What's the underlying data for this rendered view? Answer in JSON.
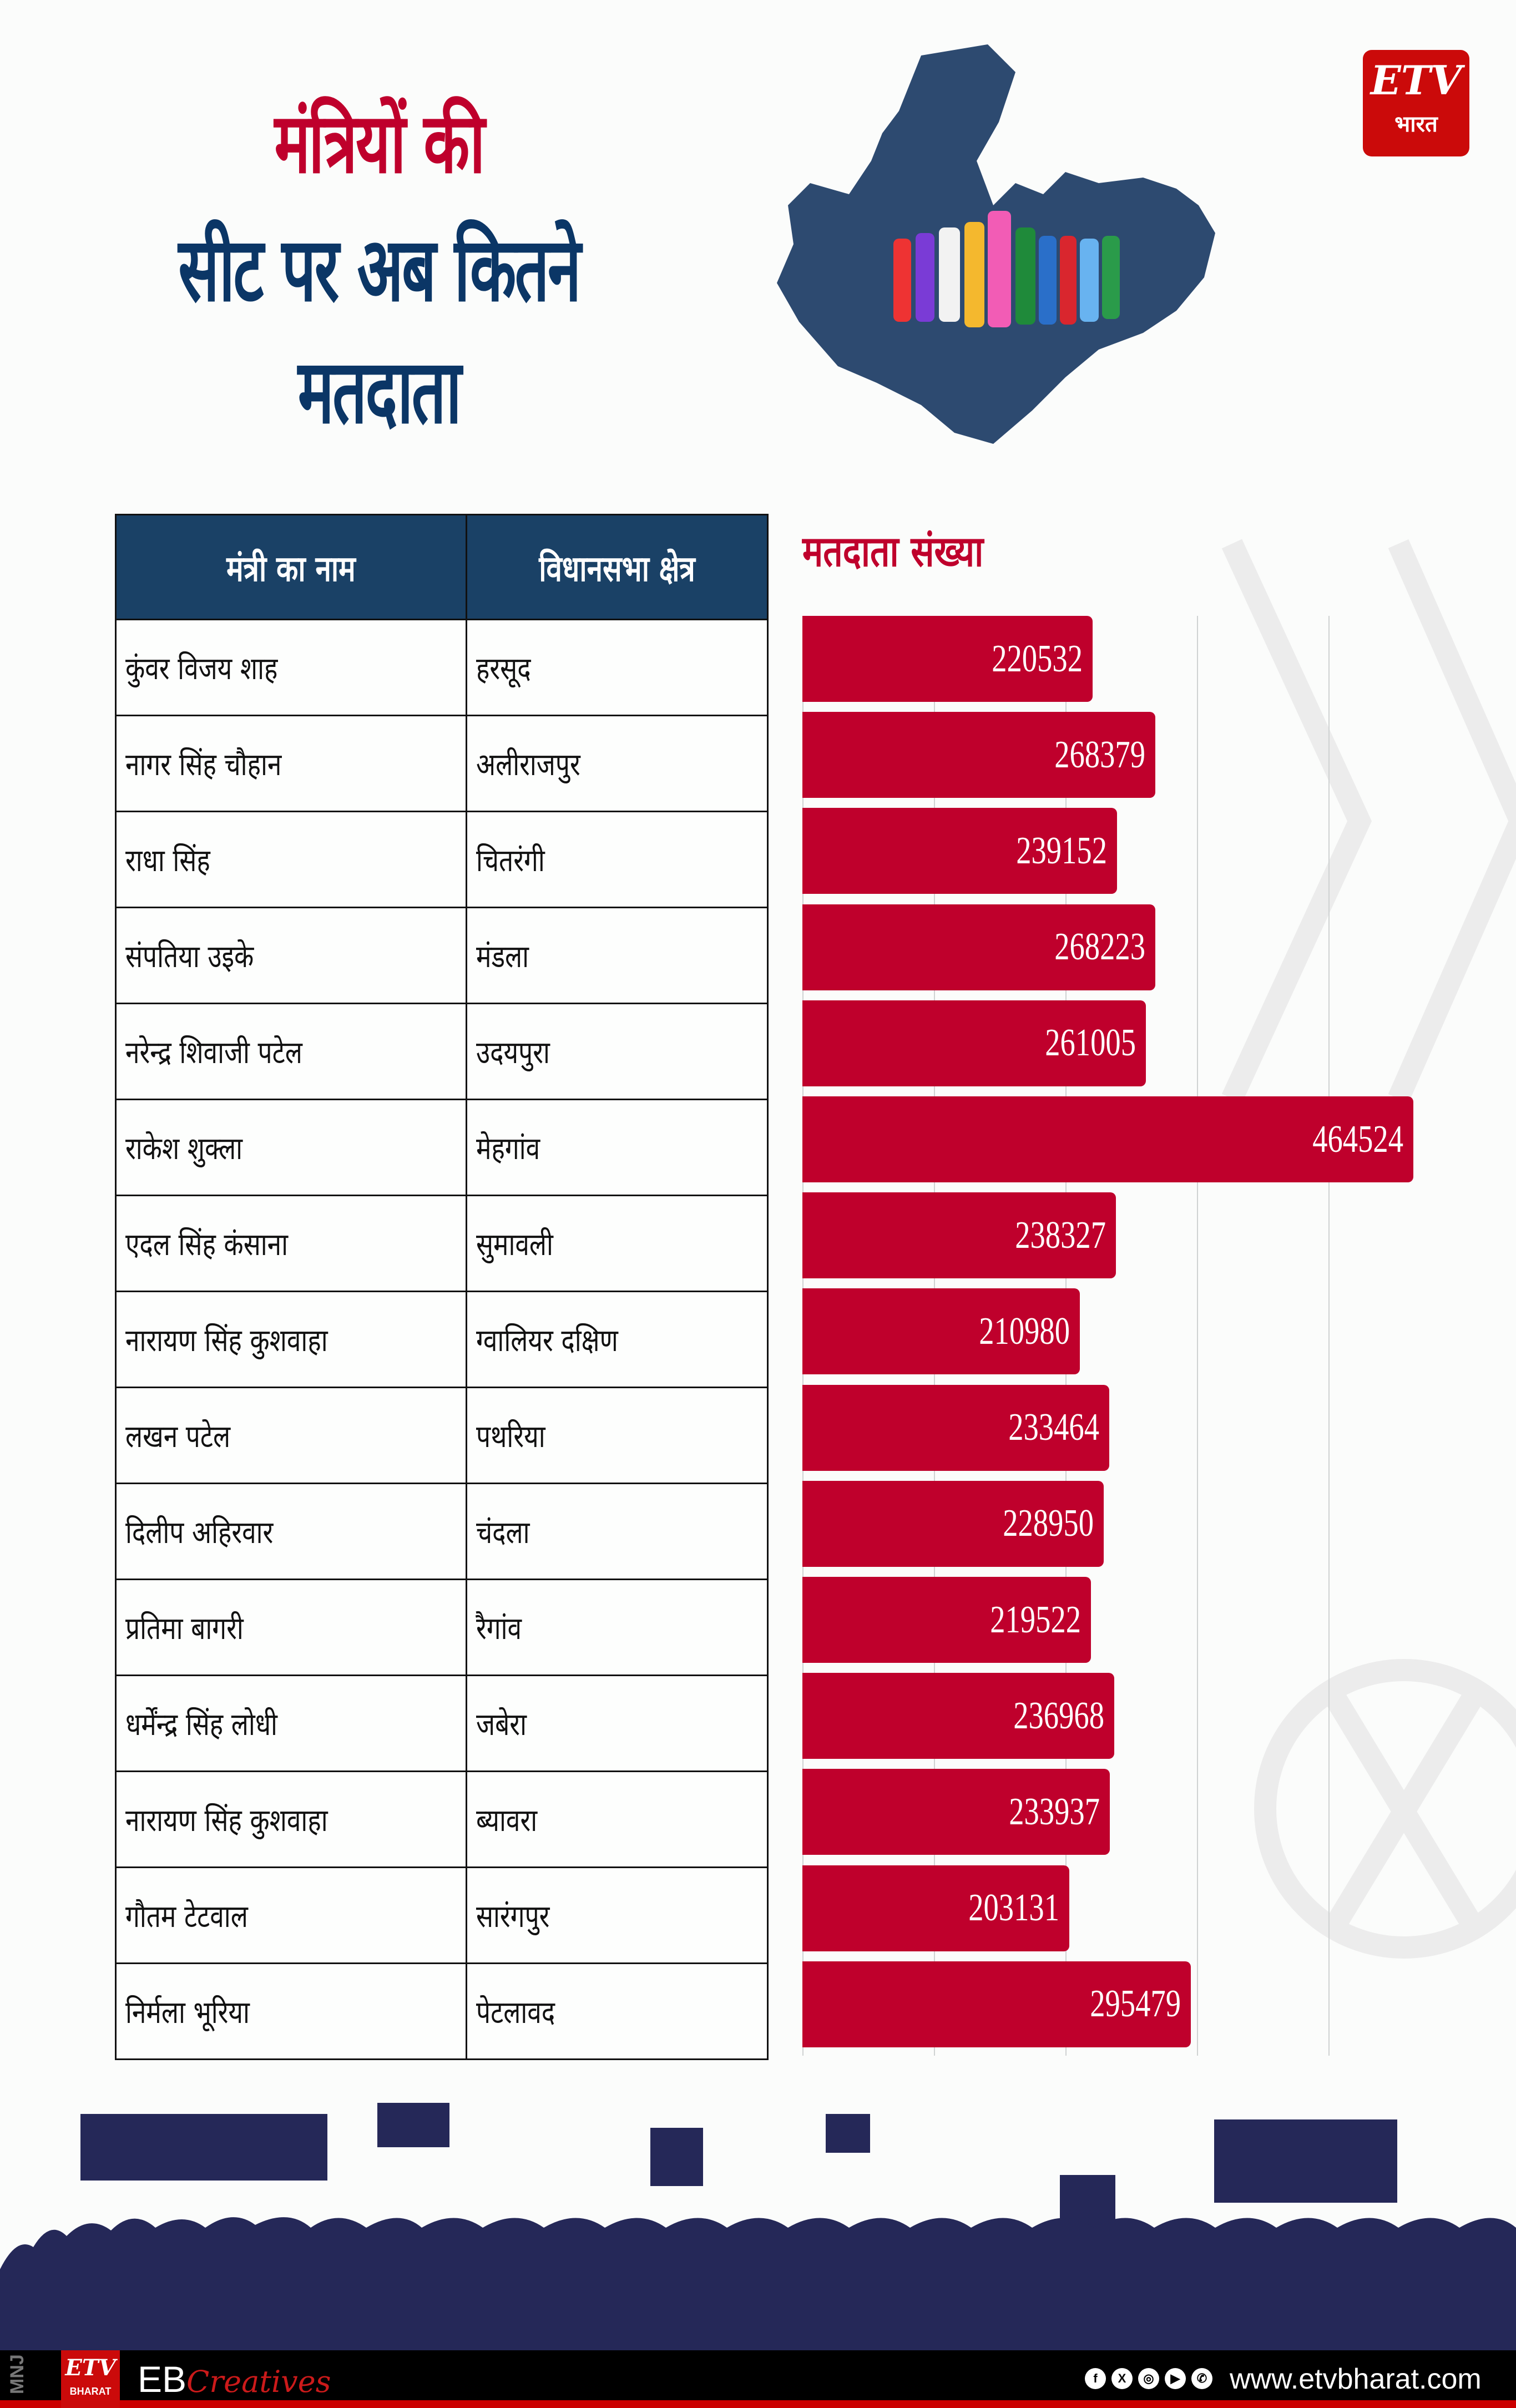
{
  "title": {
    "line1": "मंत्रियों की",
    "line2": "सीट पर अब कितने",
    "line3": "मतदाता"
  },
  "brand": {
    "logo_top": "ETV",
    "logo_bottom": "भारत",
    "footer_logo_top": "ETV",
    "footer_logo_bottom": "BHARAT",
    "credit_code": "MNJ",
    "eb": "EB",
    "creatives": "Creatives",
    "website": "www.etvbharat.com",
    "social_icons": [
      "facebook-icon",
      "x-icon",
      "instagram-icon",
      "youtube-icon",
      "whatsapp-icon"
    ]
  },
  "colors": {
    "accent_red": "#bf002c",
    "navy": "#0b3666",
    "table_header": "#1a4166",
    "map_blue": "#2d4a70",
    "crowd_navy": "#252858"
  },
  "table": {
    "headers": [
      "मंत्री का नाम",
      "विधानसभा क्षेत्र"
    ],
    "rows": [
      {
        "minister": "कुंवर विजय शाह",
        "constituency": "हरसूद"
      },
      {
        "minister": "नागर सिंह चौहान",
        "constituency": "अलीराजपुर"
      },
      {
        "minister": "राधा सिंह",
        "constituency": "चितरंगी"
      },
      {
        "minister": "संपतिया उइके",
        "constituency": "मंडला"
      },
      {
        "minister": "नरेन्द्र शिवाजी पटेल",
        "constituency": "उदयपुरा"
      },
      {
        "minister": "राकेश शुक्ला",
        "constituency": "मेहगांव"
      },
      {
        "minister": "एदल सिंह कंसाना",
        "constituency": "सुमावली"
      },
      {
        "minister": "नारायण सिंह कुशवाहा",
        "constituency": "ग्वालियर दक्षिण"
      },
      {
        "minister": "लखन पटेल",
        "constituency": "पथरिया"
      },
      {
        "minister": "दिलीप अहिरवार",
        "constituency": "चंदला"
      },
      {
        "minister": "प्रतिमा बागरी",
        "constituency": "रैगांव"
      },
      {
        "minister": "धर्मेंन्द्र सिंह लोधी",
        "constituency": "जबेरा"
      },
      {
        "minister": "नारायण सिंह कुशवाहा",
        "constituency": "ब्यावरा"
      },
      {
        "minister": "गौतम टेटवाल",
        "constituency": "सारंगपुर"
      },
      {
        "minister": "निर्मला भूरिया",
        "constituency": "पेटलावद"
      }
    ]
  },
  "chart_data": {
    "type": "bar",
    "orientation": "horizontal",
    "title": "मतदाता संख्या",
    "xlabel": "",
    "ylabel": "",
    "categories": [
      "हरसूद",
      "अलीराजपुर",
      "चितरंगी",
      "मंडला",
      "उदयपुरा",
      "मेहगांव",
      "सुमावली",
      "ग्वालियर दक्षिण",
      "पथरिया",
      "चंदला",
      "रैगांव",
      "जबेरा",
      "ब्यावरा",
      "सारंगपुर",
      "पेटलावद"
    ],
    "values": [
      220532,
      268379,
      239152,
      268223,
      261005,
      464524,
      238327,
      210980,
      233464,
      228950,
      219522,
      236968,
      233937,
      203131,
      295479
    ],
    "labels": [
      "220532",
      "268379",
      "239152",
      "268223",
      "261005",
      "464524",
      "238327",
      "210980",
      "233464",
      "228950",
      "219522",
      "236968",
      "233937",
      "203131",
      "295479"
    ],
    "xlim": [
      0,
      500000
    ],
    "gridlines": [
      0,
      100000,
      200000,
      300000,
      400000
    ],
    "grid": true,
    "legend": "none",
    "bar_color": "#bf002c"
  }
}
